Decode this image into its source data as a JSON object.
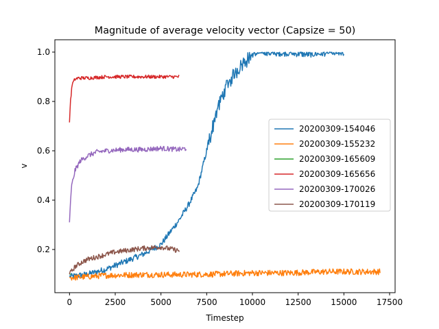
{
  "chart_data": {
    "type": "line",
    "title": "Magnitude of average velocity vector (Capsize = 50)",
    "xlabel": "Timestep",
    "ylabel": "v",
    "xlim": [
      -800,
      17800
    ],
    "ylim": [
      0.025,
      1.05
    ],
    "x_ticks": [
      0,
      2500,
      5000,
      7500,
      10000,
      12500,
      15000,
      17500
    ],
    "x_tick_labels": [
      "0",
      "2500",
      "5000",
      "7500",
      "10000",
      "12500",
      "15000",
      "17500"
    ],
    "y_ticks": [
      0.2,
      0.4,
      0.6,
      0.8,
      1.0
    ],
    "y_tick_labels": [
      "0.2",
      "0.4",
      "0.6",
      "0.8",
      "1.0"
    ],
    "grid": false,
    "legend_position": "center-right",
    "series": [
      {
        "name": "20200309-154046",
        "color": "#1f77b4",
        "noise": 0.012,
        "x": [
          0,
          1000,
          2000,
          3000,
          4000,
          5000,
          5500,
          6000,
          6500,
          7000,
          7500,
          8000,
          8500,
          9000,
          9500,
          10000,
          10500,
          11000,
          12000,
          13000,
          14000,
          15000
        ],
        "y": [
          0.09,
          0.1,
          0.12,
          0.15,
          0.18,
          0.22,
          0.27,
          0.32,
          0.38,
          0.45,
          0.6,
          0.75,
          0.85,
          0.91,
          0.96,
          0.99,
          1.0,
          0.995,
          0.995,
          0.99,
          0.995,
          0.997
        ]
      },
      {
        "name": "20200309-155232",
        "color": "#ff7f0e",
        "noise": 0.012,
        "x": [
          0,
          1000,
          2000,
          4000,
          6000,
          8000,
          10000,
          12000,
          14000,
          16000,
          17000
        ],
        "y": [
          0.085,
          0.09,
          0.095,
          0.098,
          0.098,
          0.1,
          0.105,
          0.105,
          0.11,
          0.11,
          0.11
        ]
      },
      {
        "name": "20200309-165609",
        "color": "#2ca02c",
        "noise": 0.0,
        "x": [
          0,
          100
        ],
        "y": [
          0.1,
          0.1
        ]
      },
      {
        "name": "20200309-165656",
        "color": "#d62728",
        "noise": 0.007,
        "x": [
          0,
          50,
          150,
          300,
          500,
          1000,
          2000,
          3000,
          4000,
          5000,
          6000
        ],
        "y": [
          0.715,
          0.8,
          0.87,
          0.89,
          0.895,
          0.895,
          0.9,
          0.9,
          0.9,
          0.9,
          0.9
        ]
      },
      {
        "name": "20200309-170026",
        "color": "#9467bd",
        "noise": 0.01,
        "x": [
          0,
          100,
          300,
          600,
          1000,
          1500,
          2000,
          3000,
          4000,
          5000,
          6000,
          6400
        ],
        "y": [
          0.31,
          0.45,
          0.52,
          0.56,
          0.58,
          0.595,
          0.6,
          0.605,
          0.605,
          0.61,
          0.605,
          0.61
        ]
      },
      {
        "name": "20200309-170119",
        "color": "#8c564b",
        "noise": 0.01,
        "x": [
          0,
          300,
          700,
          1000,
          1500,
          2000,
          2500,
          3000,
          3500,
          4000,
          5000,
          6000
        ],
        "y": [
          0.1,
          0.13,
          0.15,
          0.16,
          0.17,
          0.18,
          0.19,
          0.195,
          0.2,
          0.205,
          0.21,
          0.195
        ]
      }
    ]
  }
}
